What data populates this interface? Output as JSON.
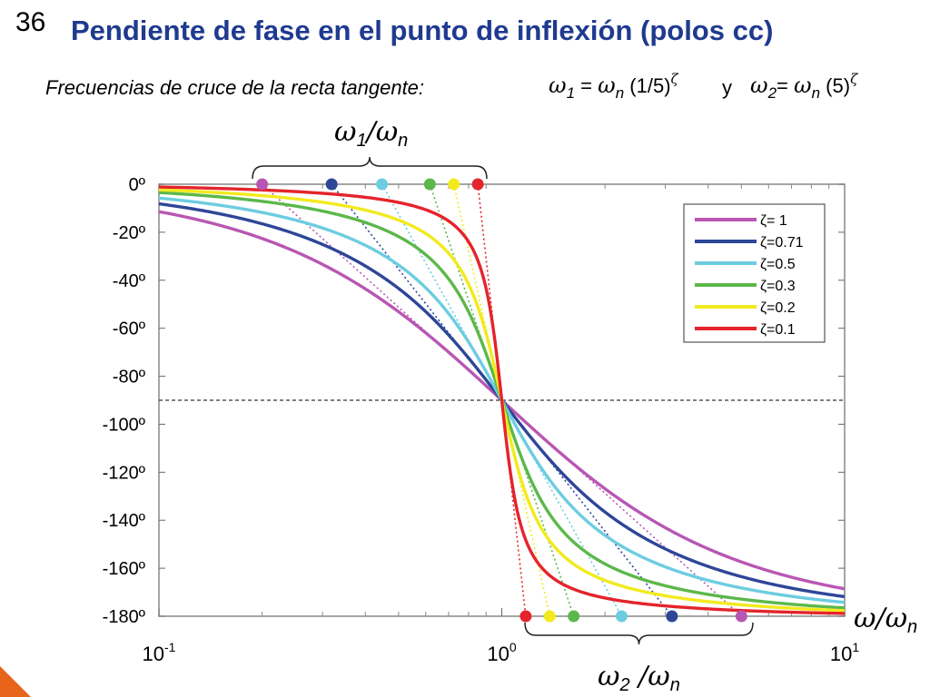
{
  "slide": {
    "number": "36",
    "title": "Pendiente de fase en el punto de inflexión (polos cc)",
    "subtitle": "Frecuencias de cruce de la recta tangente:",
    "formula1": {
      "w_label": "ω",
      "sub1": "1",
      "eq": " = ",
      "w2": "ω",
      "sub2": "n",
      "arg": " (1/5)",
      "exp": "ζ"
    },
    "connector": "y",
    "formula2": {
      "w_label": "ω",
      "sub1": "2",
      "eq": "= ",
      "w2": "ω",
      "sub2": "n",
      "arg": " (5)",
      "exp": "ζ"
    }
  },
  "annotations": {
    "top_brace": {
      "w": "ω",
      "sub1": "1",
      "slash": "/",
      "w2": "ω",
      "sub2": "n"
    },
    "bottom_brace": {
      "w": "ω",
      "sub1": "2",
      "slash": " /",
      "w2": "ω",
      "sub2": "n"
    },
    "x_axis_label": {
      "w": "ω",
      "slash": "/",
      "w2": "ω",
      "sub2": "n"
    }
  },
  "colors": {
    "title": "#1f3a8f",
    "accent_corner": "#e8641b"
  },
  "chart_data": {
    "type": "line",
    "x_scale": "log",
    "xlim": [
      0.1,
      10
    ],
    "ylim": [
      -180,
      0
    ],
    "y_ticks": [
      0,
      -20,
      -40,
      -60,
      -80,
      -100,
      -120,
      -140,
      -160,
      -180
    ],
    "y_tick_labels": [
      "0º",
      "-20º",
      "-40º",
      "-60º",
      "-80º",
      "-100º",
      "-120º",
      "-140º",
      "-160º",
      "-180º"
    ],
    "x_ticks": [
      {
        "value": 0.1,
        "base": "10",
        "exp": "-1"
      },
      {
        "value": 1,
        "base": "10",
        "exp": "0"
      },
      {
        "value": 10,
        "base": "10",
        "exp": "1"
      }
    ],
    "reference_line": -90,
    "legend_position": "top-right",
    "series": [
      {
        "name": "ζ=  1",
        "zeta": 1.0,
        "color": "#b857b3"
      },
      {
        "name": "ζ=0.71",
        "zeta": 0.71,
        "color": "#2e4698"
      },
      {
        "name": "ζ=0.5",
        "zeta": 0.5,
        "color": "#6ccde0"
      },
      {
        "name": "ζ=0.3",
        "zeta": 0.3,
        "color": "#5cb84a"
      },
      {
        "name": "ζ=0.2",
        "zeta": 0.2,
        "color": "#f2ea1e"
      },
      {
        "name": "ζ=0.1",
        "zeta": 0.1,
        "color": "#e4242b"
      }
    ]
  }
}
